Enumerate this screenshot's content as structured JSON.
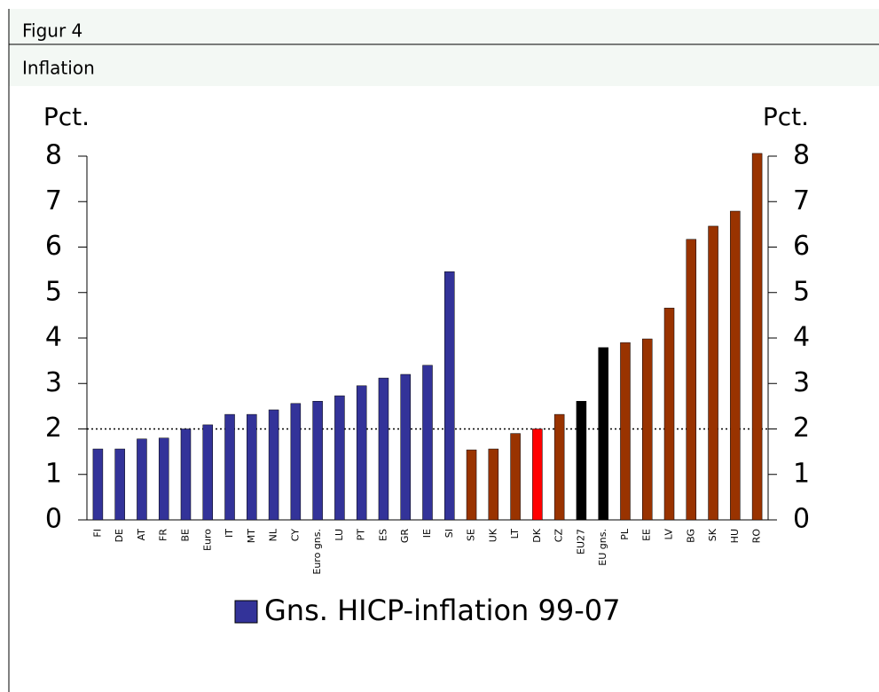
{
  "chart_data": {
    "type": "bar",
    "title": "Figur 4",
    "subtitle": "Inflation",
    "ylabel": "Pct.",
    "y2label": "Pct.",
    "categories": [
      "FI",
      "DE",
      "AT",
      "FR",
      "BE",
      "Euro",
      "IT",
      "MT",
      "NL",
      "CY",
      "Euro gns.",
      "LU",
      "PT",
      "ES",
      "GR",
      "IE",
      "SI",
      "SE",
      "UK",
      "LT",
      "DK",
      "CZ",
      "EU27",
      "EU gns.",
      "PL",
      "EE",
      "LV",
      "BG",
      "SK",
      "HU",
      "RO"
    ],
    "series": [
      {
        "name": "Gns. HICP-inflation 99-07",
        "color": "#333399",
        "values": [
          1.56,
          1.56,
          1.78,
          1.8,
          2.0,
          2.09,
          2.32,
          2.32,
          2.42,
          2.56,
          2.61,
          2.73,
          2.95,
          3.12,
          3.2,
          3.4,
          5.46,
          1.54,
          1.56,
          1.9,
          2.0,
          2.32,
          2.61,
          3.79,
          3.9,
          3.98,
          4.66,
          6.17,
          6.46,
          6.79,
          8.06
        ],
        "colors": [
          "#333399",
          "#333399",
          "#333399",
          "#333399",
          "#333399",
          "#333399",
          "#333399",
          "#333399",
          "#333399",
          "#333399",
          "#333399",
          "#333399",
          "#333399",
          "#333399",
          "#333399",
          "#333399",
          "#333399",
          "#993300",
          "#993300",
          "#993300",
          "#ff0000",
          "#993300",
          "#000000",
          "#000000",
          "#993300",
          "#993300",
          "#993300",
          "#993300",
          "#993300",
          "#993300",
          "#993300"
        ]
      }
    ],
    "reference_line": 2,
    "ylim": [
      0,
      8
    ],
    "yticks": [
      0,
      1,
      2,
      3,
      4,
      5,
      6,
      7,
      8
    ],
    "y2lim": [
      0,
      8
    ],
    "y2ticks": [
      0,
      1,
      2,
      3,
      4,
      5,
      6,
      7,
      8
    ],
    "legend": "bottom"
  }
}
